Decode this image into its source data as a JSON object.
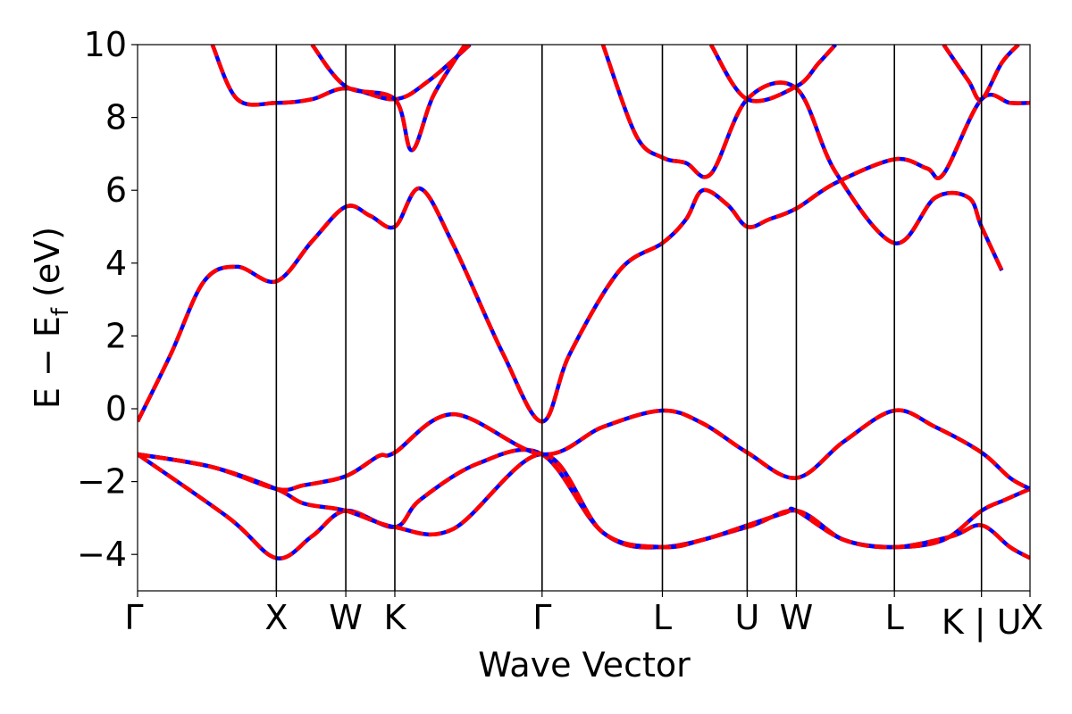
{
  "chart_data": {
    "type": "line",
    "xlabel": "Wave Vector",
    "ylabel_main": "E − E",
    "ylabel_sub": "f",
    "ylabel_tail": " (eV)",
    "ylim": [
      -5,
      10
    ],
    "yticks": [
      -4,
      -2,
      0,
      2,
      4,
      6,
      8,
      10
    ],
    "ytick_labels": [
      "−4",
      "−2",
      "0",
      "2",
      "4",
      "6",
      "8",
      "10"
    ],
    "xlim": [
      0,
      5.37
    ],
    "kpath_labels": [
      "Γ",
      "X",
      "W",
      "K",
      "Γ",
      "L",
      "U",
      "W",
      "L",
      "K | U",
      "X"
    ],
    "kpath_positions": [
      0,
      0.835,
      1.253,
      1.548,
      2.434,
      3.158,
      3.668,
      3.964,
      4.554,
      5.078,
      5.37
    ],
    "colors": {
      "series_solid": "#0000ff",
      "series_dashed": "#ff0000",
      "axes": "#000000"
    },
    "bands": [
      {
        "x": [
          0,
          0.55,
          0.835,
          1.05,
          1.253,
          1.548,
          1.7,
          2.05,
          2.434,
          2.8,
          3.158,
          3.668,
          3.964,
          4.25,
          4.554,
          4.85,
          5.078,
          5.22,
          5.37
        ],
        "y": [
          -1.25,
          -3.0,
          -4.1,
          -3.5,
          -2.8,
          -3.25,
          -2.5,
          -1.5,
          -1.25,
          -3.4,
          -3.8,
          -3.25,
          -2.8,
          -3.6,
          -3.8,
          -3.6,
          -2.8,
          -2.5,
          -2.2
        ]
      },
      {
        "x": [
          0,
          0.45,
          0.835,
          1.0,
          1.253,
          1.548,
          1.9,
          2.434,
          2.8,
          3.158,
          3.4,
          3.668,
          3.9,
          3.964,
          4.25,
          4.554,
          4.9,
          5.078,
          5.25,
          5.37
        ],
        "y": [
          -1.25,
          -1.6,
          -2.2,
          -2.6,
          -2.8,
          -3.25,
          -3.3,
          -1.25,
          -3.4,
          -3.8,
          -3.6,
          -3.2,
          -2.85,
          -2.8,
          -3.6,
          -3.8,
          -3.5,
          -3.2,
          -3.8,
          -4.1
        ]
      },
      {
        "x": [
          0,
          0.45,
          0.835,
          1.0,
          1.253,
          1.45,
          1.548,
          1.9,
          2.434,
          2.8,
          3.158,
          3.4,
          3.668,
          3.964,
          4.25,
          4.554,
          4.8,
          5.078,
          5.25,
          5.37
        ],
        "y": [
          -1.25,
          -1.6,
          -2.2,
          -2.1,
          -1.85,
          -1.3,
          -1.2,
          -0.15,
          -1.25,
          -0.5,
          -0.05,
          -0.4,
          -1.2,
          -1.9,
          -0.9,
          -0.05,
          -0.5,
          -1.2,
          -1.9,
          -2.2
        ]
      },
      {
        "x": [
          0,
          0.2,
          0.4,
          0.6,
          0.835,
          1.05,
          1.253,
          1.4,
          1.548,
          1.7,
          1.9,
          2.2,
          2.434,
          2.6,
          2.9,
          3.158,
          3.3,
          3.4,
          3.55,
          3.668,
          3.8,
          3.964,
          4.2,
          4.554,
          4.75,
          4.85,
          5.078,
          5.25,
          5.37
        ],
        "y": [
          -0.35,
          1.5,
          3.5,
          3.9,
          3.5,
          4.6,
          5.55,
          5.3,
          5.0,
          6.05,
          4.5,
          1.5,
          -0.35,
          1.5,
          3.8,
          4.55,
          5.2,
          6.0,
          5.6,
          5.0,
          5.2,
          5.5,
          6.2,
          6.85,
          6.6,
          6.45,
          8.5,
          8.4,
          8.4
        ]
      },
      {
        "x": [
          0.45,
          0.6,
          0.835,
          1.05,
          1.253,
          1.548,
          1.75,
          2.0
        ],
        "y": [
          10.0,
          8.5,
          8.4,
          8.5,
          8.8,
          8.5,
          9.0,
          10.0
        ]
      },
      {
        "x": [
          1.05,
          1.253,
          1.548,
          1.65,
          1.78,
          1.97
        ],
        "y": [
          10.0,
          8.85,
          8.5,
          7.1,
          8.6,
          10.0
        ]
      },
      {
        "x": [
          2.8,
          3.0,
          3.158,
          3.3,
          3.45,
          3.668,
          3.964,
          4.2,
          4.554,
          4.8,
          5.0,
          5.078,
          5.2
        ],
        "y": [
          10.0,
          7.5,
          6.9,
          6.75,
          6.45,
          8.5,
          8.8,
          6.5,
          4.55,
          5.8,
          5.8,
          5.0,
          3.8
        ]
      },
      {
        "x": [
          3.45,
          3.668,
          3.964,
          4.1,
          4.2
        ],
        "y": [
          10.0,
          8.5,
          8.85,
          9.5,
          10.0
        ]
      },
      {
        "x": [
          4.85,
          5.0,
          5.078,
          5.2,
          5.3
        ],
        "y": [
          10.0,
          9.0,
          8.5,
          9.5,
          10.0
        ]
      }
    ]
  }
}
